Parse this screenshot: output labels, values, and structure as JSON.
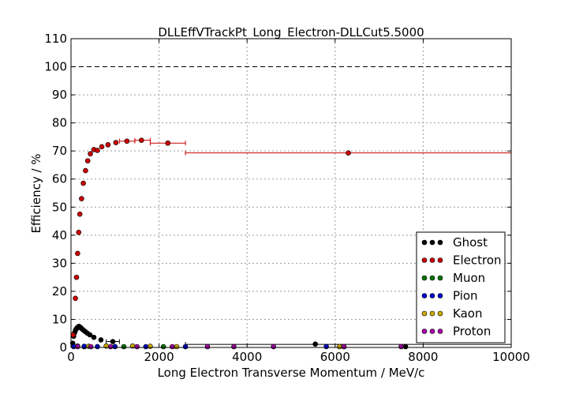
{
  "chart_data": {
    "type": "scatter",
    "title": "DLLEffVTrackPt_Long_Electron-DLLCut5.5000",
    "xlabel": "Long Electron Transverse Momentum / MeV/c",
    "ylabel": "Efficiency / %",
    "xlim": [
      0,
      10000
    ],
    "ylim": [
      0,
      110
    ],
    "xticks": [
      "0",
      "2000",
      "4000",
      "6000",
      "8000",
      "10000"
    ],
    "yticks": [
      "0",
      "10",
      "20",
      "30",
      "40",
      "50",
      "60",
      "70",
      "80",
      "90",
      "100",
      "110"
    ],
    "grid": true,
    "reference_line_y": 100,
    "legend_position": "lower-right",
    "series": [
      {
        "name": "Ghost",
        "color": "#000000",
        "points": [
          {
            "x": 40,
            "y": 1.5
          },
          {
            "x": 60,
            "y": 4.0
          },
          {
            "x": 80,
            "y": 5.2
          },
          {
            "x": 100,
            "y": 6.0
          },
          {
            "x": 120,
            "y": 6.6
          },
          {
            "x": 140,
            "y": 7.0
          },
          {
            "x": 160,
            "y": 7.3
          },
          {
            "x": 180,
            "y": 7.5
          },
          {
            "x": 200,
            "y": 7.3
          },
          {
            "x": 225,
            "y": 7.0
          },
          {
            "x": 250,
            "y": 6.6
          },
          {
            "x": 280,
            "y": 6.2
          },
          {
            "x": 320,
            "y": 5.7
          },
          {
            "x": 370,
            "y": 5.1
          },
          {
            "x": 430,
            "y": 4.5
          },
          {
            "x": 520,
            "y": 3.6
          },
          {
            "x": 680,
            "y": 2.7
          },
          {
            "x": 950,
            "y": 2.1
          },
          {
            "x": 5550,
            "y": 1.2
          },
          {
            "x": 7600,
            "y": 0.0
          }
        ],
        "xerr_bins": [
          {
            "x0": 800,
            "x1": 1100,
            "y": 2.1
          },
          {
            "x0": 2600,
            "x1": 10000,
            "y": 1.1
          }
        ]
      },
      {
        "name": "Electron",
        "color": "#cc0000",
        "points": [
          {
            "x": 50,
            "y": 4.5
          },
          {
            "x": 100,
            "y": 17.5
          },
          {
            "x": 125,
            "y": 25.0
          },
          {
            "x": 150,
            "y": 33.5
          },
          {
            "x": 175,
            "y": 41.0
          },
          {
            "x": 200,
            "y": 47.5
          },
          {
            "x": 240,
            "y": 53.0
          },
          {
            "x": 280,
            "y": 58.5
          },
          {
            "x": 330,
            "y": 63.0
          },
          {
            "x": 380,
            "y": 66.5
          },
          {
            "x": 440,
            "y": 69.0
          },
          {
            "x": 520,
            "y": 70.5
          },
          {
            "x": 600,
            "y": 70.2
          },
          {
            "x": 700,
            "y": 71.5
          },
          {
            "x": 840,
            "y": 72.2
          },
          {
            "x": 1020,
            "y": 73.0
          },
          {
            "x": 1270,
            "y": 73.5
          },
          {
            "x": 1600,
            "y": 73.8
          },
          {
            "x": 2200,
            "y": 72.8
          },
          {
            "x": 6300,
            "y": 69.3
          }
        ],
        "xerr_bins": [
          {
            "x0": 1100,
            "x1": 1450,
            "y": 73.5
          },
          {
            "x0": 1450,
            "x1": 1800,
            "y": 73.8
          },
          {
            "x0": 1800,
            "x1": 2600,
            "y": 72.8
          },
          {
            "x0": 2600,
            "x1": 10000,
            "y": 69.3
          }
        ]
      },
      {
        "name": "Muon",
        "color": "#007700",
        "points": [
          {
            "x": 300,
            "y": 0.0
          },
          {
            "x": 1200,
            "y": 0.1
          },
          {
            "x": 2100,
            "y": 0.0
          },
          {
            "x": 6200,
            "y": 0.0
          }
        ]
      },
      {
        "name": "Pion",
        "color": "#0000cc",
        "points": [
          {
            "x": 60,
            "y": 0.3
          },
          {
            "x": 150,
            "y": 0.5
          },
          {
            "x": 300,
            "y": 0.4
          },
          {
            "x": 600,
            "y": 0.3
          },
          {
            "x": 1000,
            "y": 0.3
          },
          {
            "x": 1700,
            "y": 0.2
          },
          {
            "x": 2600,
            "y": 0.1
          },
          {
            "x": 5800,
            "y": 0.3
          }
        ]
      },
      {
        "name": "Kaon",
        "color": "#ccaa00",
        "points": [
          {
            "x": 400,
            "y": 0.4
          },
          {
            "x": 800,
            "y": 0.5
          },
          {
            "x": 1400,
            "y": 0.5
          },
          {
            "x": 1800,
            "y": 0.4
          },
          {
            "x": 2400,
            "y": 0.2
          },
          {
            "x": 6100,
            "y": 0.2
          }
        ]
      },
      {
        "name": "Proton",
        "color": "#aa00aa",
        "points": [
          {
            "x": 150,
            "y": 0.1
          },
          {
            "x": 450,
            "y": 0.1
          },
          {
            "x": 900,
            "y": 0.1
          },
          {
            "x": 1500,
            "y": 0.1
          },
          {
            "x": 2300,
            "y": 0.0
          },
          {
            "x": 3100,
            "y": 0.0
          },
          {
            "x": 3700,
            "y": 0.0
          },
          {
            "x": 4600,
            "y": 0.0
          },
          {
            "x": 6200,
            "y": 0.0
          },
          {
            "x": 7500,
            "y": 0.0
          }
        ]
      }
    ]
  }
}
